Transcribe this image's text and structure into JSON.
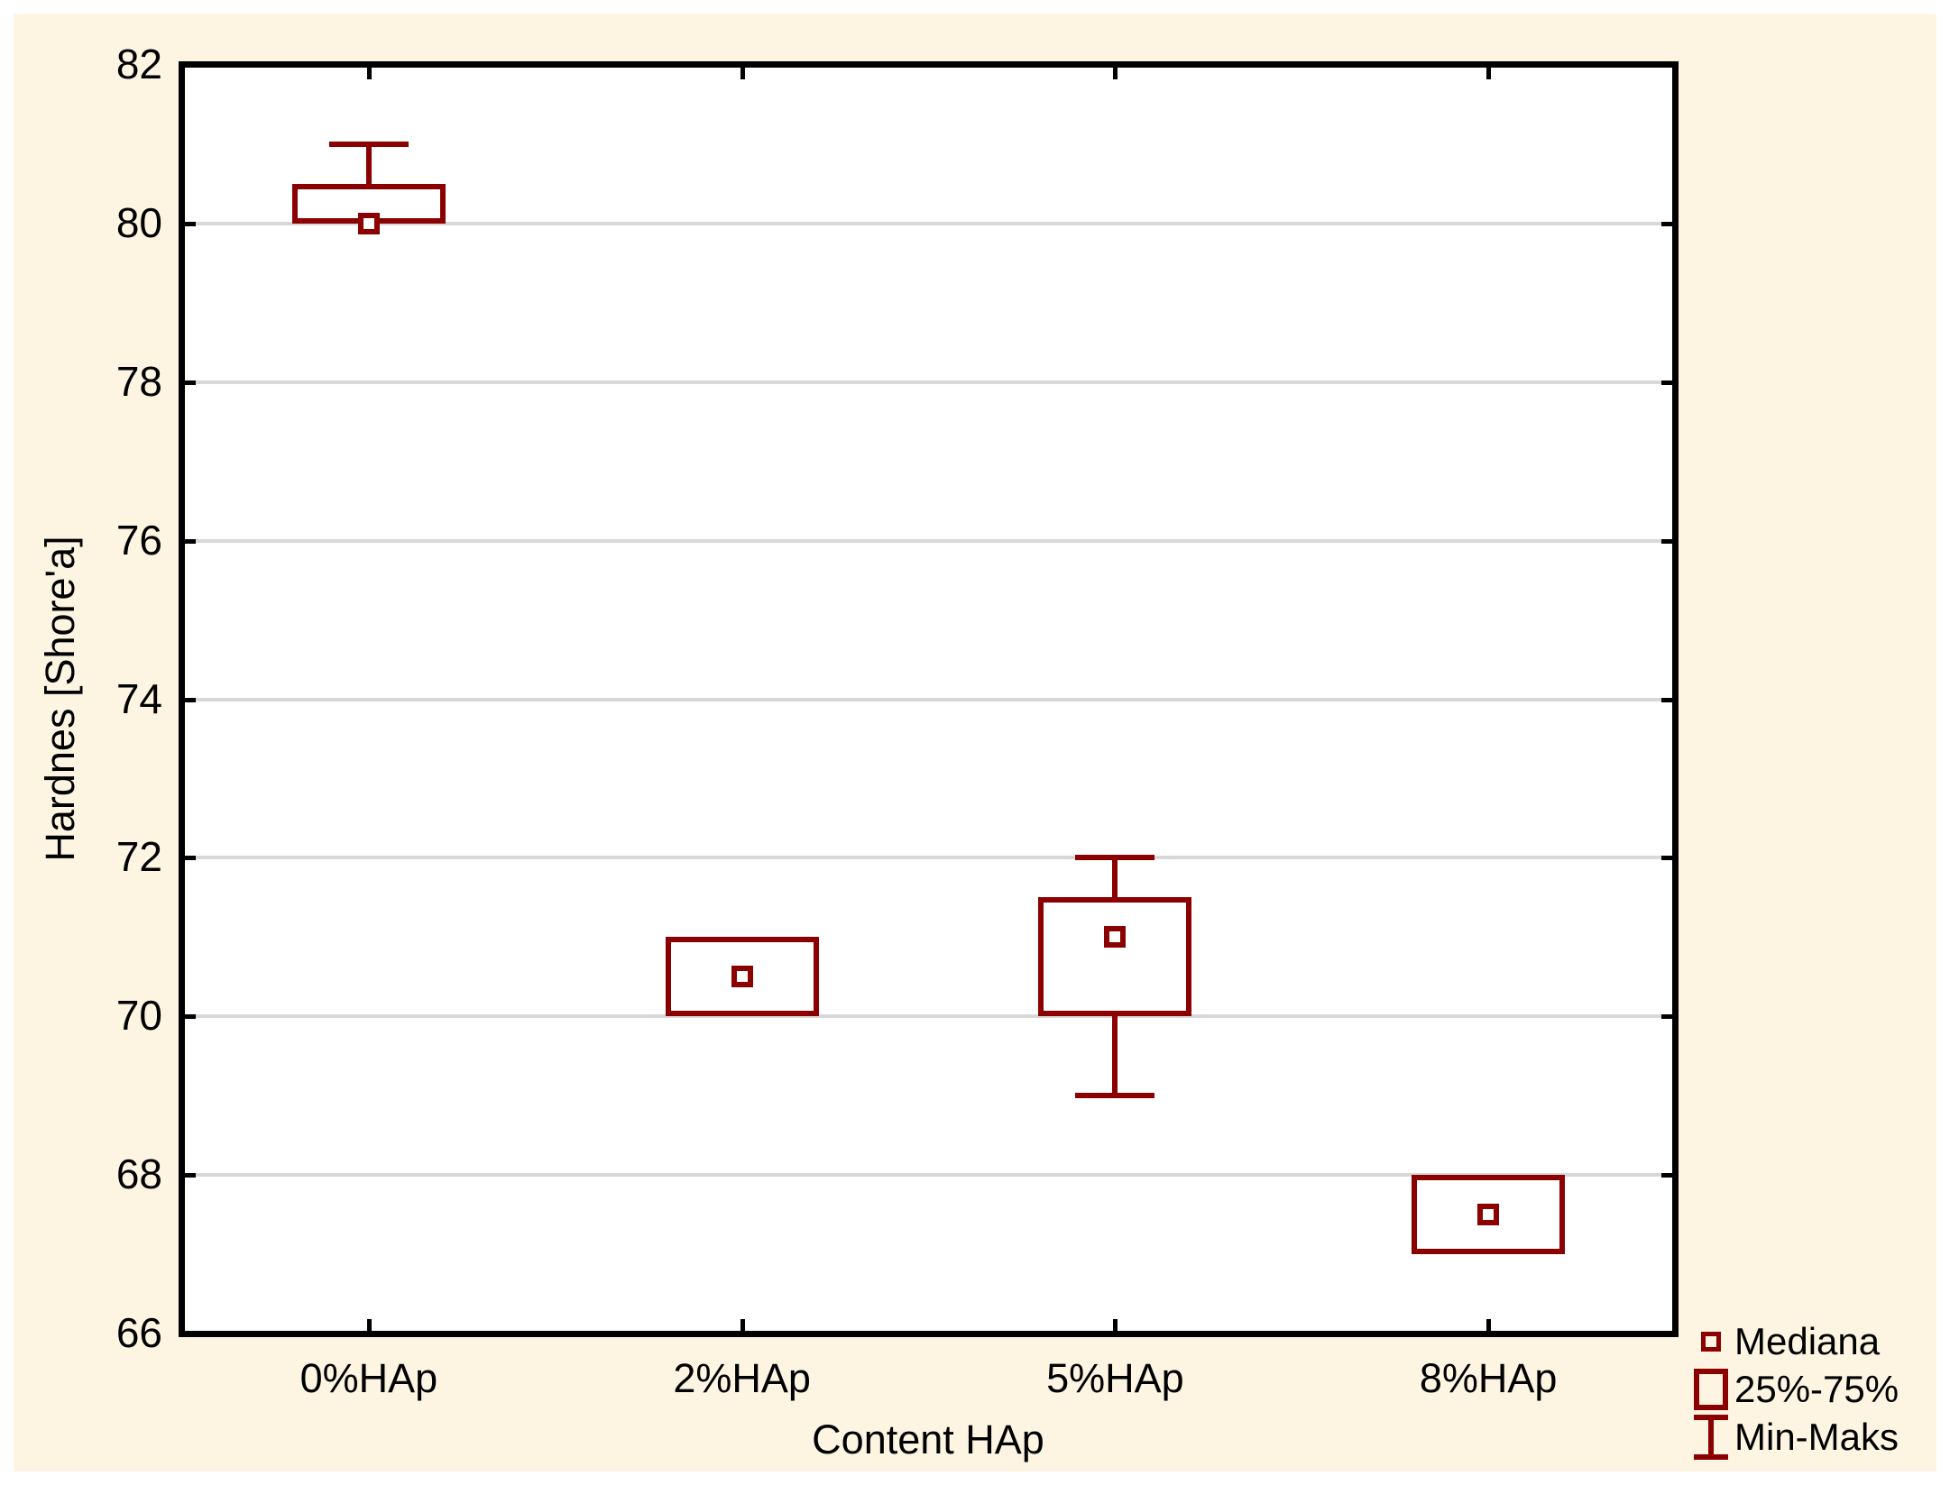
{
  "figure": {
    "background_color": "#FDF5E2",
    "plot_background_color": "#FFFFFF",
    "accent_color": "#8B0000",
    "grid_color": "#D8D8D8",
    "frame_color": "#000000",
    "text_color": "#000000"
  },
  "chart_data": {
    "type": "boxplot",
    "title": "",
    "xlabel": "Content HAp",
    "ylabel": "Hardnes [Shore'a]",
    "categories": [
      "0%HAp",
      "2%HAp",
      "5%HAp",
      "8%HAp"
    ],
    "ylim": [
      66,
      82
    ],
    "yticks": [
      66,
      68,
      70,
      72,
      74,
      76,
      78,
      80,
      82
    ],
    "grid": "horizontal-on",
    "series": [
      {
        "category": "0%HAp",
        "min": 80,
        "q1": 80,
        "median": 80,
        "q3": 80.5,
        "max": 81
      },
      {
        "category": "2%HAp",
        "min": 70,
        "q1": 70,
        "median": 70.5,
        "q3": 71,
        "max": 71
      },
      {
        "category": "5%HAp",
        "min": 69,
        "q1": 70,
        "median": 71,
        "q3": 71.5,
        "max": 72
      },
      {
        "category": "8%HAp",
        "min": 67,
        "q1": 67,
        "median": 67.5,
        "q3": 68,
        "max": 68
      }
    ],
    "legend_position": "bottom-right",
    "legend": [
      {
        "symbol": "median-square",
        "label": "Mediana"
      },
      {
        "symbol": "box",
        "label": "25%-75%"
      },
      {
        "symbol": "min-max-whisker",
        "label": "Min-Maks"
      }
    ]
  }
}
